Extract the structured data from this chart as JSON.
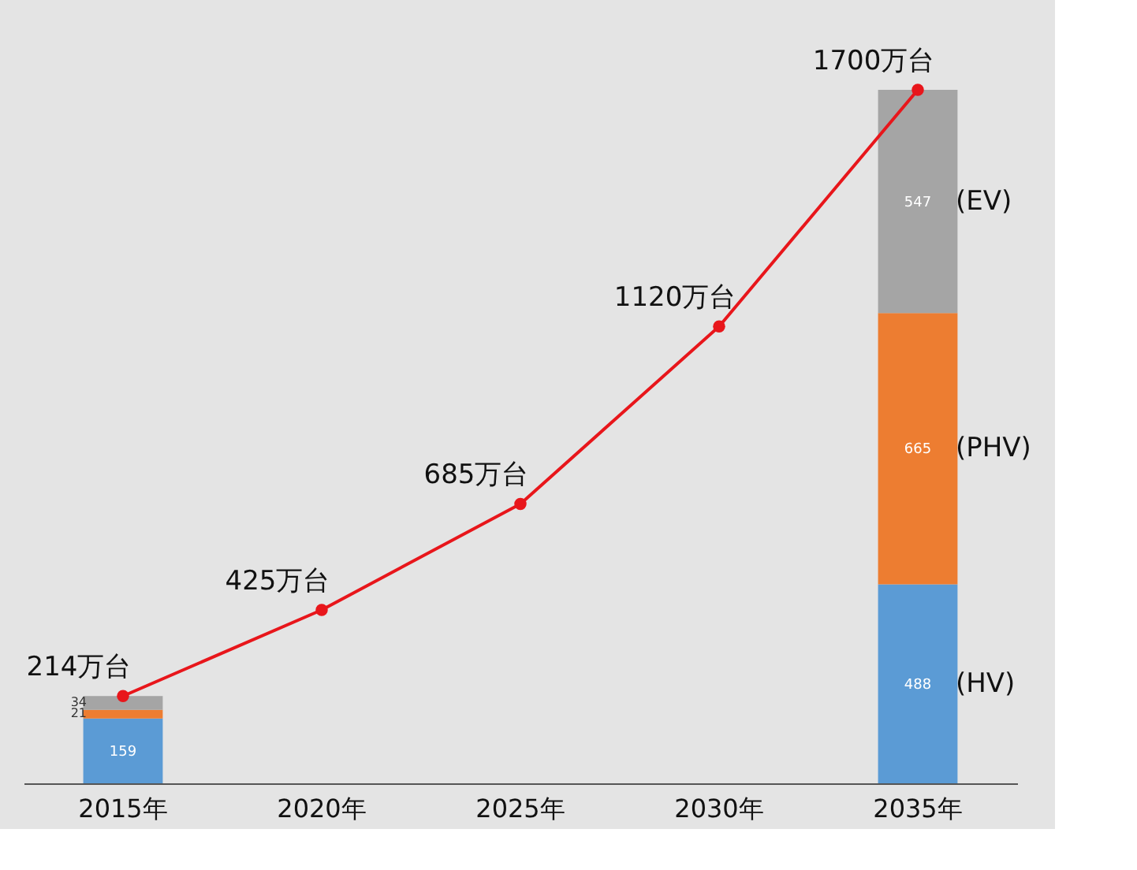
{
  "chart_data": {
    "type": "bar",
    "stacked": true,
    "categories": [
      "2015年",
      "2020年",
      "2025年",
      "2030年",
      "2035年"
    ],
    "tick_labels": "x",
    "grid": false,
    "series": [
      {
        "name": "(HV)",
        "color": "#5b9bd5",
        "values": [
          159,
          null,
          null,
          null,
          488
        ],
        "value_labels": [
          "159",
          null,
          null,
          null,
          "488"
        ]
      },
      {
        "name": "(PHV)",
        "color": "#ed7d31",
        "values": [
          21,
          null,
          null,
          null,
          665
        ],
        "value_labels": [
          "21",
          null,
          null,
          null,
          "665"
        ]
      },
      {
        "name": "(EV)",
        "color": "#a5a5a5",
        "values": [
          34,
          null,
          null,
          null,
          547
        ],
        "value_labels": [
          "34",
          null,
          null,
          null,
          "547"
        ]
      },
      {
        "type": "line",
        "color": "#e8161b",
        "marker": "circle",
        "line_style": "solid",
        "values": [
          214,
          425,
          685,
          1120,
          1700
        ],
        "value_labels": [
          "214万台",
          "425万台",
          "685万台",
          "1120万台",
          "1700万台"
        ]
      }
    ]
  }
}
